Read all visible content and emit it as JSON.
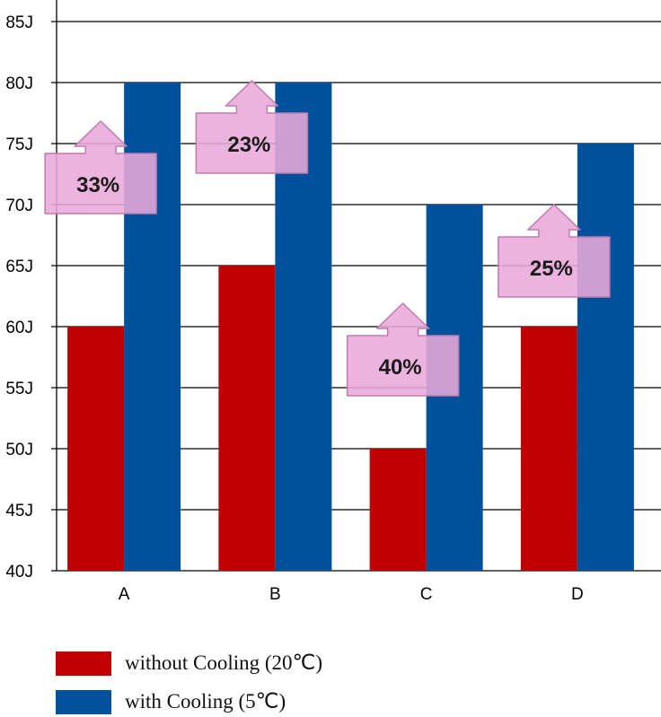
{
  "chart_data": {
    "type": "bar",
    "categories": [
      "A",
      "B",
      "C",
      "D"
    ],
    "series": [
      {
        "name": "without Cooling (20℃)",
        "values": [
          60,
          65,
          50,
          60
        ],
        "color": "#c00000"
      },
      {
        "name": "with Cooling (5℃)",
        "values": [
          80,
          80,
          70,
          75
        ],
        "color": "#00519c"
      }
    ],
    "ylim": [
      40,
      85
    ],
    "yticks": [
      40,
      45,
      50,
      55,
      60,
      65,
      70,
      75,
      80,
      85
    ],
    "y_tick_suffix": "J",
    "grid": true,
    "legend_position": "bottom-left",
    "annotations": [
      "33%",
      "23%",
      "40%",
      "25%"
    ],
    "annotation_color": "#e8a8d8"
  }
}
